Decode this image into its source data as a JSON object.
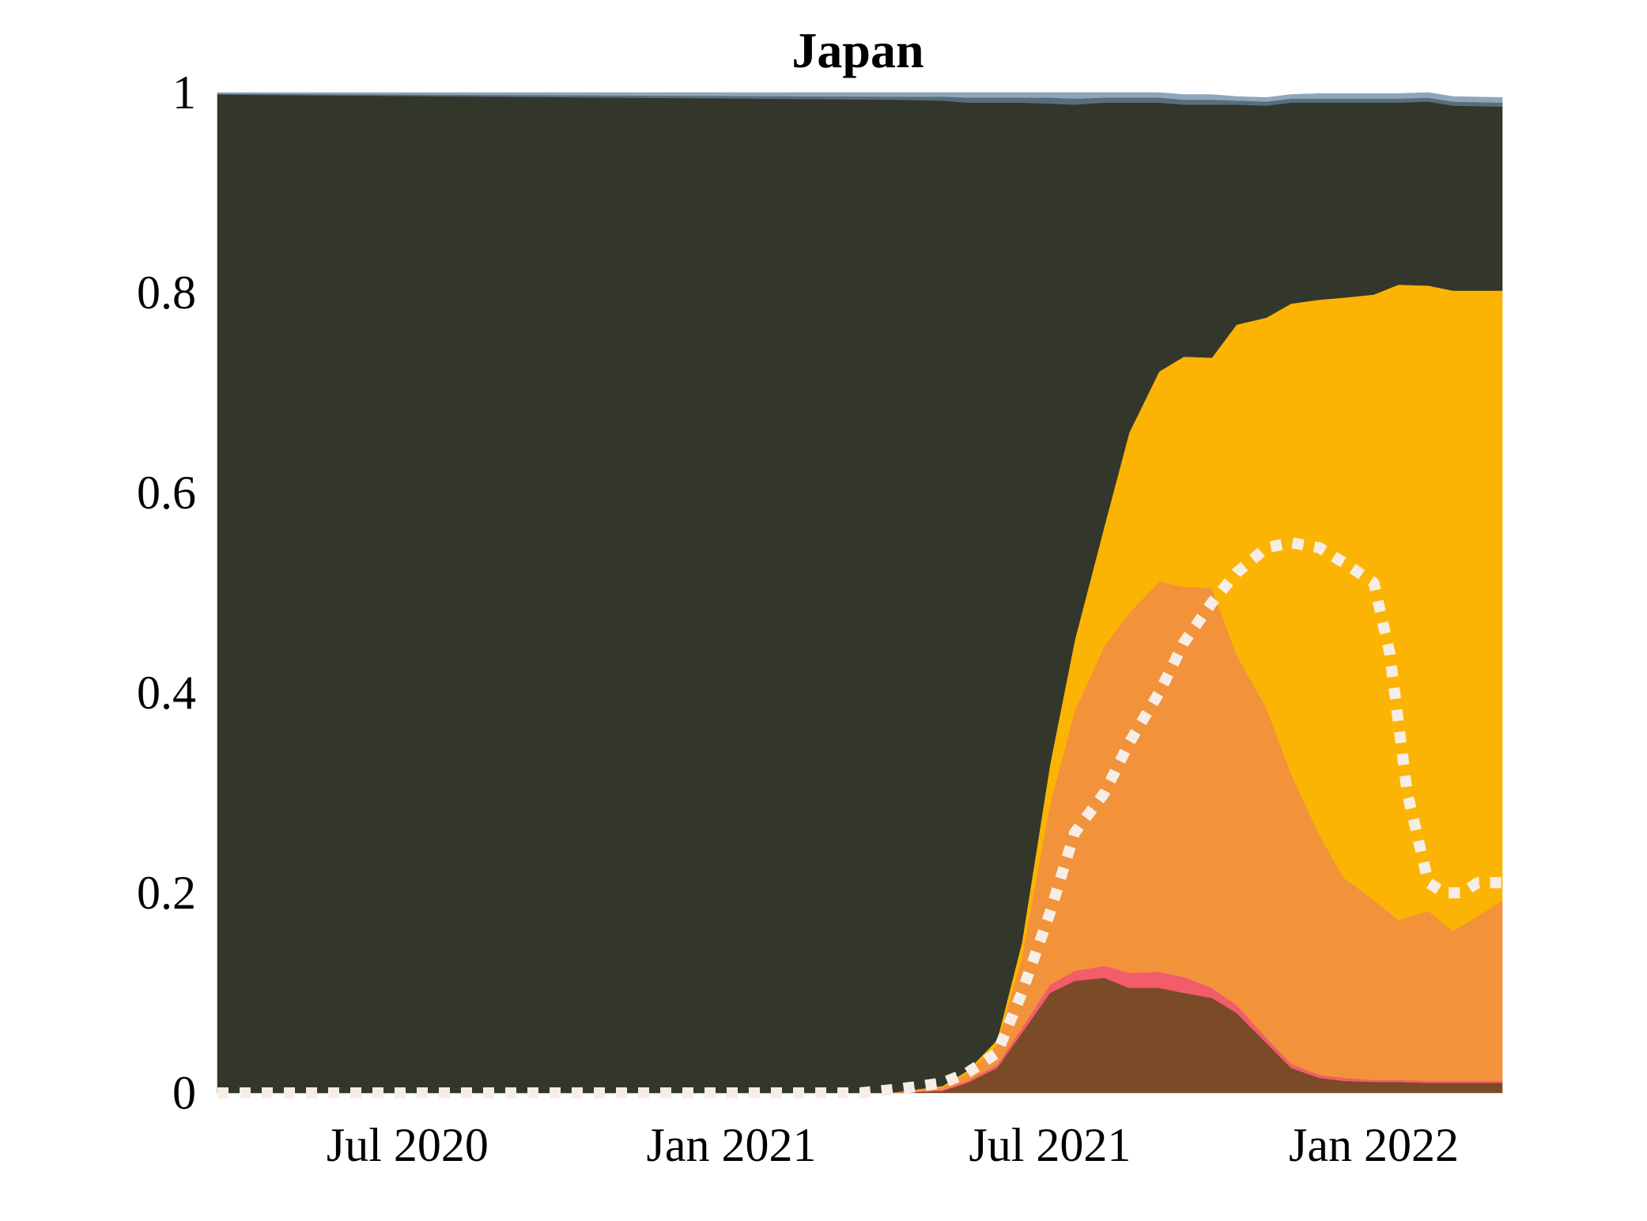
{
  "chart_data": {
    "type": "area",
    "stacked": true,
    "title": "Japan",
    "xlabel": "",
    "ylabel": "",
    "x_start": "2020-03-15",
    "x_end": "2022-03-15",
    "ylim": [
      0,
      1
    ],
    "yticks": [
      {
        "value": 0,
        "label": "0"
      },
      {
        "value": 0.2,
        "label": "0.2"
      },
      {
        "value": 0.4,
        "label": "0.4"
      },
      {
        "value": 0.6,
        "label": "0.6"
      },
      {
        "value": 0.8,
        "label": "0.8"
      },
      {
        "value": 1,
        "label": "1"
      }
    ],
    "xticks": [
      {
        "date": "2020-07-01",
        "label": "Jul 2020"
      },
      {
        "date": "2021-01-01",
        "label": "Jan 2021"
      },
      {
        "date": "2021-07-01",
        "label": "Jul 2021"
      },
      {
        "date": "2022-01-01",
        "label": "Jan 2022"
      }
    ],
    "grid": false,
    "legend": "none",
    "x": [
      "2020-03-15",
      "2021-04-01",
      "2021-05-01",
      "2021-05-15",
      "2021-06-01",
      "2021-06-15",
      "2021-07-01",
      "2021-07-15",
      "2021-08-01",
      "2021-08-15",
      "2021-09-01",
      "2021-09-15",
      "2021-10-01",
      "2021-10-15",
      "2021-11-01",
      "2021-11-15",
      "2021-12-01",
      "2021-12-15",
      "2022-01-01",
      "2022-01-15",
      "2022-02-01",
      "2022-02-15",
      "2022-03-15"
    ],
    "series": [
      {
        "color": "#7b4a26",
        "values": [
          0,
          0,
          0.002,
          0.01,
          0.025,
          0.06,
          0.1,
          0.112,
          0.115,
          0.105,
          0.105,
          0.1,
          0.095,
          0.08,
          0.05,
          0.025,
          0.015,
          0.012,
          0.011,
          0.011,
          0.01,
          0.01,
          0.01
        ]
      },
      {
        "color": "#f25c6b",
        "values": [
          0,
          0,
          0.001,
          0.002,
          0.003,
          0.005,
          0.008,
          0.01,
          0.012,
          0.015,
          0.016,
          0.016,
          0.01,
          0.008,
          0.005,
          0.004,
          0.003,
          0.003,
          0.002,
          0.002,
          0.002,
          0.002,
          0.002
        ]
      },
      {
        "color": "#f2923a",
        "values": [
          0,
          0,
          0.003,
          0.008,
          0.02,
          0.07,
          0.18,
          0.26,
          0.32,
          0.36,
          0.39,
          0.39,
          0.4,
          0.35,
          0.33,
          0.29,
          0.24,
          0.2,
          0.18,
          0.16,
          0.17,
          0.15,
          0.18
        ]
      },
      {
        "color": "#fcb404",
        "values": [
          0,
          0,
          0.001,
          0.002,
          0.005,
          0.015,
          0.04,
          0.07,
          0.12,
          0.18,
          0.21,
          0.23,
          0.23,
          0.33,
          0.39,
          0.47,
          0.535,
          0.58,
          0.605,
          0.635,
          0.625,
          0.64,
          0.61
        ]
      },
      {
        "color": "#33372b",
        "values": [
          0.998,
          0.993,
          0.985,
          0.968,
          0.937,
          0.84,
          0.661,
          0.536,
          0.423,
          0.33,
          0.269,
          0.252,
          0.253,
          0.22,
          0.212,
          0.201,
          0.197,
          0.195,
          0.192,
          0.182,
          0.184,
          0.185,
          0.184
        ]
      },
      {
        "color": "#5a6d7e",
        "values": [
          0.001,
          0.003,
          0.004,
          0.005,
          0.005,
          0.005,
          0.006,
          0.006,
          0.005,
          0.005,
          0.005,
          0.005,
          0.005,
          0.004,
          0.004,
          0.004,
          0.004,
          0.004,
          0.004,
          0.004,
          0.004,
          0.004,
          0.004
        ]
      },
      {
        "color": "#8fa6ba",
        "values": [
          0.001,
          0.004,
          0.004,
          0.005,
          0.005,
          0.005,
          0.005,
          0.006,
          0.005,
          0.005,
          0.005,
          0.005,
          0.005,
          0.004,
          0.004,
          0.004,
          0.005,
          0.005,
          0.005,
          0.005,
          0.005,
          0.005,
          0.005
        ]
      }
    ],
    "overlay_line": {
      "style": "dotted",
      "color": "#f6eee6",
      "x": [
        "2020-03-15",
        "2021-03-15",
        "2021-04-01",
        "2021-04-15",
        "2021-05-01",
        "2021-05-15",
        "2021-06-01",
        "2021-06-15",
        "2021-07-01",
        "2021-07-15",
        "2021-08-01",
        "2021-08-15",
        "2021-09-01",
        "2021-09-15",
        "2021-10-01",
        "2021-10-15",
        "2021-11-01",
        "2021-11-15",
        "2021-12-01",
        "2021-12-15",
        "2022-01-01",
        "2022-01-10",
        "2022-01-20",
        "2022-02-01",
        "2022-02-10",
        "2022-02-20",
        "2022-03-01",
        "2022-03-15"
      ],
      "values": [
        0,
        0,
        0.003,
        0.006,
        0.01,
        0.02,
        0.04,
        0.1,
        0.18,
        0.26,
        0.3,
        0.35,
        0.4,
        0.45,
        0.49,
        0.52,
        0.545,
        0.55,
        0.545,
        0.53,
        0.51,
        0.44,
        0.3,
        0.21,
        0.2,
        0.2,
        0.21,
        0.21
      ]
    }
  }
}
